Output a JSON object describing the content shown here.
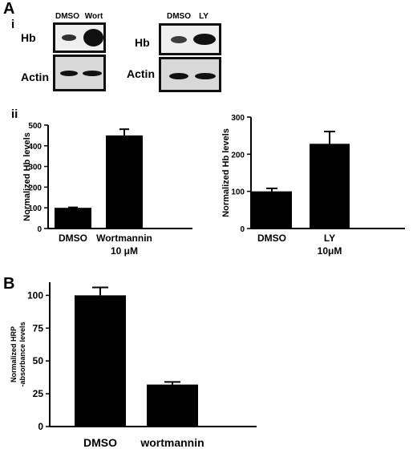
{
  "panel_a": {
    "letter": "A",
    "part_i": "i",
    "part_ii": "ii",
    "blot_left": {
      "lanes": [
        "DMSO",
        "Wort"
      ],
      "rows": [
        "Hb",
        "Actin"
      ]
    },
    "blot_right": {
      "lanes": [
        "DMSO",
        "LY"
      ],
      "rows": [
        "Hb",
        "Actin"
      ]
    }
  },
  "panel_b": {
    "letter": "B"
  },
  "chart_data": [
    {
      "type": "bar",
      "categories": [
        "DMSO",
        "Wortmannin"
      ],
      "category_sublabels": [
        "",
        "10 μM"
      ],
      "values": [
        100,
        450
      ],
      "errors": [
        2,
        30
      ],
      "ylabel": "Normalized Hb levels",
      "ylim": [
        0,
        500
      ],
      "yticks": [
        0,
        100,
        200,
        300,
        400,
        500
      ],
      "tick_labels": [
        "0",
        "100",
        "200",
        "300",
        "400",
        "500"
      ]
    },
    {
      "type": "bar",
      "categories": [
        "DMSO",
        "LY"
      ],
      "category_sublabels": [
        "",
        "10μM"
      ],
      "values": [
        100,
        228
      ],
      "errors": [
        8,
        33
      ],
      "ylabel": "Normalized Hb levels",
      "ylim": [
        0,
        300
      ],
      "yticks": [
        0,
        100,
        200,
        300
      ],
      "tick_labels": [
        "0",
        "100",
        "200",
        "300"
      ]
    },
    {
      "type": "bar",
      "categories": [
        "DMSO",
        "wortmannin"
      ],
      "category_sublabels": [
        "",
        ""
      ],
      "values": [
        100,
        32
      ],
      "errors": [
        6,
        2
      ],
      "ylabel_lines": [
        "Normalized HRP",
        "-absorbance levels"
      ],
      "ylim": [
        0,
        110
      ],
      "yticks": [
        0,
        25,
        50,
        75,
        100
      ],
      "tick_labels": [
        "0",
        "25",
        "50",
        "75",
        "100"
      ]
    }
  ]
}
